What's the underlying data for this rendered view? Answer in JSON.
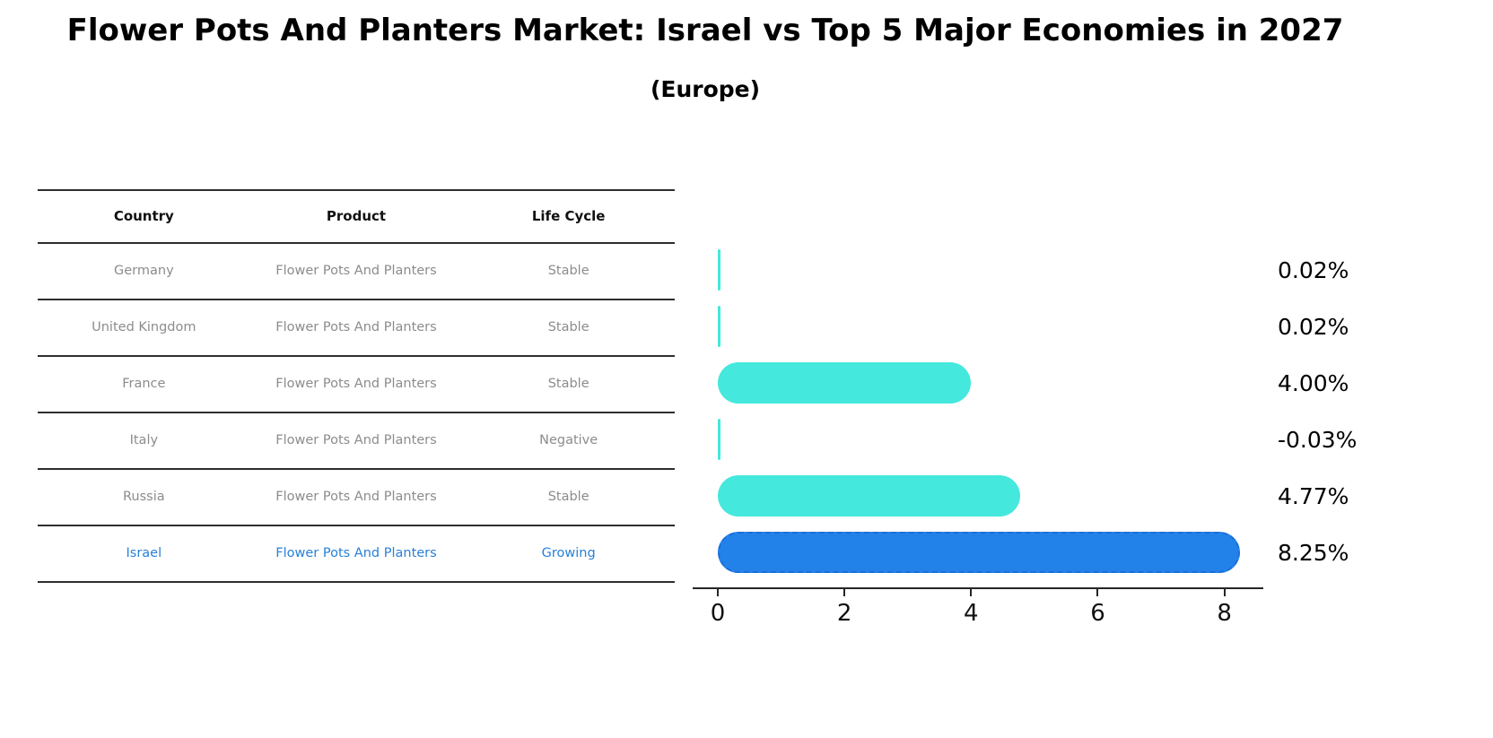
{
  "title": "Flower Pots And Planters Market: Israel vs Top 5 Major Economies in 2027",
  "subtitle": "(Europe)",
  "table": {
    "headers": {
      "country": "Country",
      "product": "Product",
      "life_cycle": "Life Cycle"
    },
    "rows": [
      {
        "country": "Germany",
        "product": "Flower Pots And Planters",
        "life_cycle": "Stable"
      },
      {
        "country": "United Kingdom",
        "product": "Flower Pots And Planters",
        "life_cycle": "Stable"
      },
      {
        "country": "France",
        "product": "Flower Pots And Planters",
        "life_cycle": "Stable"
      },
      {
        "country": "Italy",
        "product": "Flower Pots And Planters",
        "life_cycle": "Negative"
      },
      {
        "country": "Russia",
        "product": "Flower Pots And Planters",
        "life_cycle": "Stable"
      },
      {
        "country": "Israel",
        "product": "Flower Pots And Planters",
        "life_cycle": "Growing"
      }
    ]
  },
  "chart_data": {
    "type": "bar",
    "orientation": "horizontal",
    "title": "Flower Pots And Planters Market: Israel vs Top 5 Major Economies in 2027 (Europe)",
    "categories": [
      "Germany",
      "United Kingdom",
      "France",
      "Italy",
      "Russia",
      "Israel"
    ],
    "values": [
      0.02,
      0.02,
      4.0,
      -0.03,
      4.77,
      8.25
    ],
    "value_labels": [
      "0.02%",
      "0.02%",
      "4.00%",
      "-0.03%",
      "4.77%",
      "8.25%"
    ],
    "xticks": [
      0,
      2,
      4,
      6,
      8
    ],
    "xlim": [
      0,
      8.6
    ],
    "grid": false,
    "legend": "none",
    "highlight_index": 5,
    "colors": {
      "bar": "#45e8dc",
      "highlight_bar": "#2282ea",
      "highlight_border": "#1b6fd6",
      "highlight_text": "#2980d9",
      "table_text": "#8c8c8c",
      "axis_text": "#111111"
    }
  }
}
